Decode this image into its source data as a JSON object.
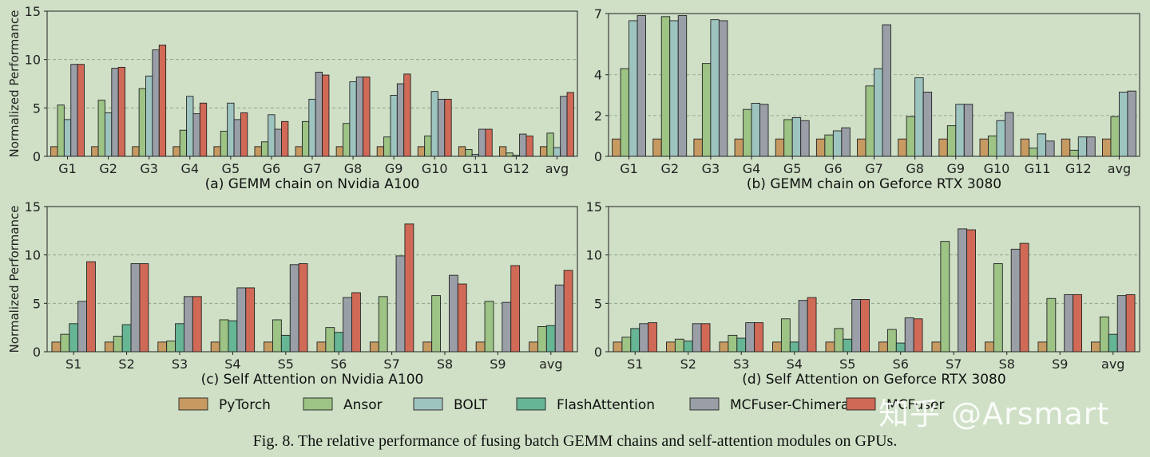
{
  "figure_caption": "Fig. 8.  The relative performance of fusing batch GEMM chains and self-attention modules on GPUs.",
  "watermark": "知乎 @Arsmart",
  "legend": [
    {
      "name": "PyTorch",
      "color": "#c79a62"
    },
    {
      "name": "Ansor",
      "color": "#9dc385"
    },
    {
      "name": "BOLT",
      "color": "#9ec4c0"
    },
    {
      "name": "FlashAttention",
      "color": "#66b595"
    },
    {
      "name": "MCFuser-Chimera",
      "color": "#9a9ea7"
    },
    {
      "name": "MCFuser",
      "color": "#d06a57"
    }
  ],
  "chart_data": [
    {
      "id": "a",
      "type": "bar",
      "title": "(a) GEMM chain on Nvidia A100",
      "ylabel": "Normalized Performance",
      "ylim": [
        0,
        15
      ],
      "yticks": [
        0,
        5,
        10,
        15
      ],
      "grid": true,
      "categories": [
        "G1",
        "G2",
        "G3",
        "G4",
        "G5",
        "G6",
        "G7",
        "G8",
        "G9",
        "G10",
        "G11",
        "G12",
        "avg"
      ],
      "series": [
        {
          "name": "PyTorch",
          "values": [
            1,
            1,
            1,
            1,
            1,
            1,
            1,
            1,
            1,
            1,
            1,
            1,
            1
          ]
        },
        {
          "name": "Ansor",
          "values": [
            5.3,
            5.8,
            7.0,
            2.7,
            2.6,
            1.5,
            3.6,
            3.4,
            2.0,
            2.1,
            0.7,
            0.35,
            2.4
          ]
        },
        {
          "name": "BOLT",
          "values": [
            3.8,
            4.5,
            8.3,
            6.2,
            5.5,
            4.3,
            5.9,
            7.7,
            6.3,
            6.7,
            0.2,
            0.1,
            0.9
          ]
        },
        {
          "name": "MCFuser-Chimera",
          "values": [
            9.5,
            9.1,
            11.0,
            4.4,
            3.8,
            2.8,
            8.7,
            8.2,
            7.5,
            5.9,
            2.8,
            2.3,
            6.2
          ]
        },
        {
          "name": "MCFuser",
          "values": [
            9.5,
            9.2,
            11.5,
            5.5,
            4.5,
            3.6,
            8.4,
            8.2,
            8.5,
            5.9,
            2.8,
            2.1,
            6.6
          ]
        }
      ]
    },
    {
      "id": "b",
      "type": "bar",
      "title": "(b) GEMM chain on Geforce RTX 3080",
      "ylabel": "",
      "ylim": [
        0,
        7
      ],
      "yticks": [
        0,
        2,
        4,
        7
      ],
      "grid": true,
      "categories": [
        "G1",
        "G2",
        "G3",
        "G4",
        "G5",
        "G6",
        "G7",
        "G8",
        "G9",
        "G10",
        "G11",
        "G12",
        "avg"
      ],
      "series": [
        {
          "name": "PyTorch",
          "values": [
            0.85,
            0.85,
            0.85,
            0.85,
            0.85,
            0.85,
            0.85,
            0.85,
            0.85,
            0.85,
            0.85,
            0.85,
            0.85
          ]
        },
        {
          "name": "Ansor",
          "values": [
            4.3,
            6.85,
            4.55,
            2.3,
            1.8,
            1.05,
            3.45,
            1.95,
            1.5,
            1.0,
            0.4,
            0.3,
            1.95
          ]
        },
        {
          "name": "BOLT",
          "values": [
            6.65,
            6.65,
            6.7,
            2.6,
            1.9,
            1.25,
            4.3,
            3.85,
            2.55,
            1.75,
            1.1,
            0.95,
            3.15
          ]
        },
        {
          "name": "MCFuser-Chimera",
          "values": [
            6.9,
            6.9,
            6.65,
            2.55,
            1.75,
            1.4,
            6.45,
            3.15,
            2.55,
            2.15,
            0.75,
            0.95,
            3.2
          ]
        }
      ]
    },
    {
      "id": "c",
      "type": "bar",
      "title": "(c) Self Attention on Nvidia A100",
      "ylabel": "Normalized Performance",
      "ylim": [
        0,
        15
      ],
      "yticks": [
        0,
        5,
        10,
        15
      ],
      "grid": true,
      "categories": [
        "S1",
        "S2",
        "S3",
        "S4",
        "S5",
        "S6",
        "S7",
        "S8",
        "S9",
        "avg"
      ],
      "series": [
        {
          "name": "PyTorch",
          "values": [
            1,
            1,
            1,
            1,
            1,
            1,
            1,
            1,
            1,
            1
          ]
        },
        {
          "name": "Ansor",
          "values": [
            1.8,
            1.6,
            1.1,
            3.3,
            3.3,
            2.5,
            5.7,
            5.8,
            5.2,
            2.6
          ]
        },
        {
          "name": "FlashAttention",
          "values": [
            2.9,
            2.8,
            2.9,
            3.2,
            1.7,
            2.0,
            0,
            0,
            0,
            2.7
          ]
        },
        {
          "name": "MCFuser-Chimera",
          "values": [
            5.2,
            9.1,
            5.7,
            6.6,
            9.0,
            5.6,
            9.9,
            7.9,
            5.1,
            6.9
          ]
        },
        {
          "name": "MCFuser",
          "values": [
            9.3,
            9.1,
            5.7,
            6.6,
            9.1,
            6.1,
            13.2,
            7.0,
            8.9,
            8.4
          ]
        }
      ]
    },
    {
      "id": "d",
      "type": "bar",
      "title": "(d) Self Attention on Geforce RTX 3080",
      "ylabel": "",
      "ylim": [
        0,
        15
      ],
      "yticks": [
        0,
        5,
        10,
        15
      ],
      "grid": true,
      "categories": [
        "S1",
        "S2",
        "S3",
        "S4",
        "S5",
        "S6",
        "S7",
        "S8",
        "S9",
        "avg"
      ],
      "series": [
        {
          "name": "PyTorch",
          "values": [
            1,
            1,
            1,
            1,
            1,
            1,
            1,
            1,
            1,
            1
          ]
        },
        {
          "name": "Ansor",
          "values": [
            1.5,
            1.3,
            1.7,
            3.4,
            2.4,
            2.3,
            11.4,
            9.1,
            5.5,
            3.6
          ]
        },
        {
          "name": "FlashAttention",
          "values": [
            2.4,
            1.1,
            1.4,
            1.0,
            1.3,
            0.9,
            0,
            0,
            0,
            1.8
          ]
        },
        {
          "name": "MCFuser-Chimera",
          "values": [
            2.9,
            2.9,
            3.0,
            5.3,
            5.4,
            3.5,
            12.7,
            10.6,
            5.9,
            5.8
          ]
        },
        {
          "name": "MCFuser",
          "values": [
            3.0,
            2.9,
            3.0,
            5.6,
            5.4,
            3.4,
            12.6,
            11.2,
            5.9,
            5.9
          ]
        }
      ]
    }
  ]
}
